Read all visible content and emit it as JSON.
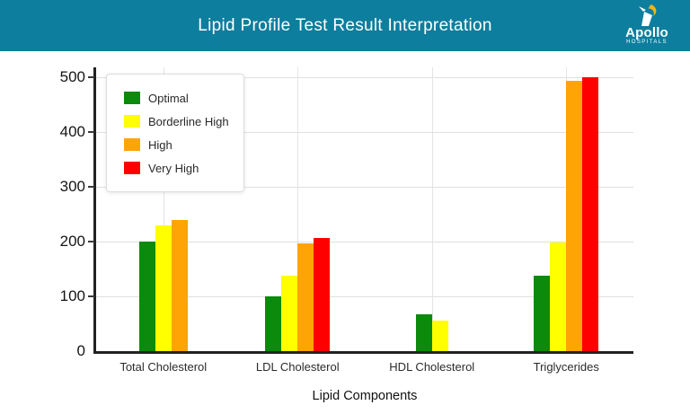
{
  "header": {
    "title": "Lipid Profile Test Result Interpretation",
    "bg_color": "#0d7e9d",
    "logo": {
      "name": "Apollo",
      "subname": "HOSPITALS",
      "flame_color": "#f2b31c"
    }
  },
  "chart_data": {
    "type": "bar",
    "title": "Lipid Profile Test Result Interpretation",
    "categories": [
      "Total Cholesterol",
      "LDL Cholesterol",
      "HDL Cholesterol",
      "Triglycerides"
    ],
    "series": [
      {
        "name": "Optimal",
        "color": "#0b8a0b",
        "values": [
          200,
          100,
          68,
          137
        ]
      },
      {
        "name": "Borderline High",
        "color": "#ffff00",
        "values": [
          230,
          137,
          55,
          199
        ]
      },
      {
        "name": "High",
        "color": "#ffa405",
        "values": [
          240,
          196,
          null,
          493
        ]
      },
      {
        "name": "Very High",
        "color": "#fe0000",
        "values": [
          null,
          207,
          null,
          500
        ]
      }
    ],
    "xlabel": "Lipid Components",
    "ylabel": "",
    "ylim": [
      0,
      500
    ],
    "yticks": [
      0,
      100,
      200,
      300,
      400,
      500
    ],
    "grid": true,
    "legend_position": "upper-left",
    "axis_color": "#222222",
    "gridline_color": "#e0e0e0"
  }
}
